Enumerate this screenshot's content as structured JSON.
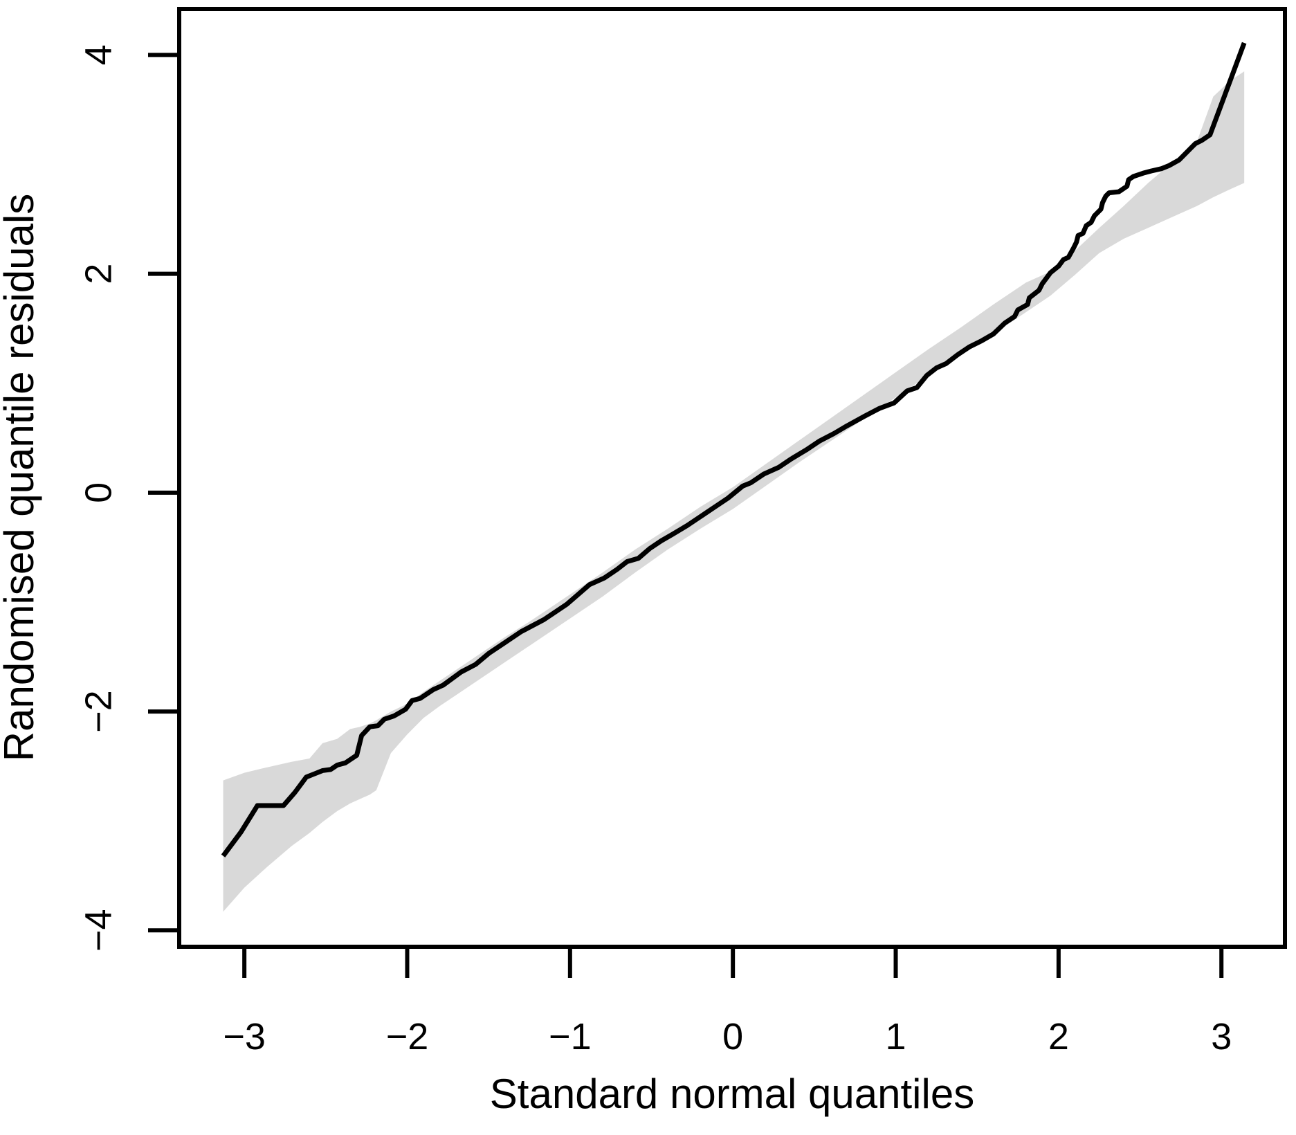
{
  "figure": {
    "background": "#ffffff"
  },
  "chart_data": {
    "type": "line",
    "subtype": "qq-plot-with-confidence-band",
    "title": "",
    "xlabel": "Standard normal quantiles",
    "ylabel": "Randomised quantile residuals",
    "x_ticks": [
      -3,
      -2,
      -1,
      0,
      1,
      2,
      3
    ],
    "y_ticks": [
      -4,
      -2,
      0,
      2,
      4
    ],
    "xlim": [
      -3.4,
      3.39
    ],
    "ylim": [
      -4.15,
      4.42
    ],
    "grid": false,
    "legend": "none",
    "colors": {
      "line": "#000000",
      "band": "#d9d9d9",
      "axis": "#000000",
      "background": "#ffffff"
    },
    "series": [
      {
        "name": "randomised-quantile-residuals",
        "type": "line",
        "points": [
          [
            -3.13,
            -3.32
          ],
          [
            -3.02,
            -3.1
          ],
          [
            -2.92,
            -2.86
          ],
          [
            -2.83,
            -2.86
          ],
          [
            -2.76,
            -2.86
          ],
          [
            -2.69,
            -2.74
          ],
          [
            -2.62,
            -2.6
          ],
          [
            -2.57,
            -2.57
          ],
          [
            -2.52,
            -2.54
          ],
          [
            -2.47,
            -2.53
          ],
          [
            -2.43,
            -2.49
          ],
          [
            -2.38,
            -2.47
          ],
          [
            -2.35,
            -2.44
          ],
          [
            -2.31,
            -2.4
          ],
          [
            -2.29,
            -2.28
          ],
          [
            -2.28,
            -2.22
          ],
          [
            -2.23,
            -2.14
          ],
          [
            -2.18,
            -2.13
          ],
          [
            -2.14,
            -2.07
          ],
          [
            -2.08,
            -2.04
          ],
          [
            -2.01,
            -1.98
          ],
          [
            -1.97,
            -1.9
          ],
          [
            -1.92,
            -1.88
          ],
          [
            -1.84,
            -1.8
          ],
          [
            -1.78,
            -1.76
          ],
          [
            -1.67,
            -1.64
          ],
          [
            -1.58,
            -1.57
          ],
          [
            -1.5,
            -1.47
          ],
          [
            -1.41,
            -1.38
          ],
          [
            -1.3,
            -1.27
          ],
          [
            -1.16,
            -1.16
          ],
          [
            -1.02,
            -1.02
          ],
          [
            -0.88,
            -0.84
          ],
          [
            -0.79,
            -0.78
          ],
          [
            -0.71,
            -0.7
          ],
          [
            -0.65,
            -0.63
          ],
          [
            -0.58,
            -0.6
          ],
          [
            -0.51,
            -0.51
          ],
          [
            -0.44,
            -0.44
          ],
          [
            -0.37,
            -0.38
          ],
          [
            -0.28,
            -0.3
          ],
          [
            -0.2,
            -0.22
          ],
          [
            -0.11,
            -0.13
          ],
          [
            -0.03,
            -0.05
          ],
          [
            0.06,
            0.06
          ],
          [
            0.11,
            0.09
          ],
          [
            0.19,
            0.17
          ],
          [
            0.28,
            0.23
          ],
          [
            0.36,
            0.31
          ],
          [
            0.45,
            0.39
          ],
          [
            0.53,
            0.47
          ],
          [
            0.62,
            0.54
          ],
          [
            0.7,
            0.61
          ],
          [
            0.81,
            0.7
          ],
          [
            0.9,
            0.77
          ],
          [
            0.99,
            0.82
          ],
          [
            1.07,
            0.93
          ],
          [
            1.13,
            0.96
          ],
          [
            1.19,
            1.07
          ],
          [
            1.25,
            1.14
          ],
          [
            1.31,
            1.18
          ],
          [
            1.38,
            1.26
          ],
          [
            1.45,
            1.33
          ],
          [
            1.53,
            1.39
          ],
          [
            1.6,
            1.45
          ],
          [
            1.67,
            1.55
          ],
          [
            1.73,
            1.61
          ],
          [
            1.75,
            1.67
          ],
          [
            1.81,
            1.72
          ],
          [
            1.82,
            1.78
          ],
          [
            1.88,
            1.85
          ],
          [
            1.9,
            1.91
          ],
          [
            1.93,
            1.97
          ],
          [
            1.95,
            2.01
          ],
          [
            2.0,
            2.07
          ],
          [
            2.03,
            2.13
          ],
          [
            2.06,
            2.15
          ],
          [
            2.09,
            2.23
          ],
          [
            2.11,
            2.29
          ],
          [
            2.12,
            2.35
          ],
          [
            2.15,
            2.37
          ],
          [
            2.17,
            2.44
          ],
          [
            2.2,
            2.47
          ],
          [
            2.22,
            2.53
          ],
          [
            2.24,
            2.56
          ],
          [
            2.26,
            2.59
          ],
          [
            2.27,
            2.65
          ],
          [
            2.29,
            2.71
          ],
          [
            2.31,
            2.74
          ],
          [
            2.37,
            2.75
          ],
          [
            2.42,
            2.8
          ],
          [
            2.43,
            2.86
          ],
          [
            2.46,
            2.89
          ],
          [
            2.52,
            2.92
          ],
          [
            2.57,
            2.94
          ],
          [
            2.63,
            2.96
          ],
          [
            2.68,
            2.99
          ],
          [
            2.74,
            3.04
          ],
          [
            2.78,
            3.1
          ],
          [
            2.82,
            3.16
          ],
          [
            2.84,
            3.19
          ],
          [
            2.88,
            3.22
          ],
          [
            2.92,
            3.26
          ],
          [
            2.93,
            3.27
          ],
          [
            3.14,
            4.11
          ]
        ]
      },
      {
        "name": "confidence-band",
        "type": "band",
        "x": [
          -3.13,
          -3.0,
          -2.86,
          -2.71,
          -2.6,
          -2.52,
          -2.43,
          -2.35,
          -2.29,
          -2.23,
          -2.19,
          -2.1,
          -2.0,
          -1.9,
          -1.8,
          -1.7,
          -1.55,
          -1.4,
          -1.25,
          -1.1,
          -0.95,
          -0.8,
          -0.6,
          -0.4,
          -0.2,
          0.0,
          0.2,
          0.4,
          0.6,
          0.8,
          1.0,
          1.2,
          1.4,
          1.6,
          1.8,
          1.95,
          2.1,
          2.25,
          2.4,
          2.55,
          2.7,
          2.85,
          2.95,
          3.05,
          3.14
        ],
        "upper": [
          -2.63,
          -2.56,
          -2.51,
          -2.46,
          -2.43,
          -2.29,
          -2.25,
          -2.16,
          -2.14,
          -2.11,
          -2.08,
          -2.0,
          -1.93,
          -1.82,
          -1.72,
          -1.62,
          -1.47,
          -1.32,
          -1.18,
          -1.03,
          -0.88,
          -0.73,
          -0.52,
          -0.33,
          -0.13,
          0.05,
          0.26,
          0.47,
          0.68,
          0.89,
          1.1,
          1.31,
          1.51,
          1.72,
          1.92,
          2.02,
          2.21,
          2.42,
          2.62,
          2.83,
          3.02,
          3.21,
          3.62,
          3.76,
          3.85
        ],
        "lower": [
          -3.83,
          -3.61,
          -3.42,
          -3.23,
          -3.11,
          -3.01,
          -2.91,
          -2.84,
          -2.8,
          -2.76,
          -2.72,
          -2.38,
          -2.21,
          -2.06,
          -1.95,
          -1.85,
          -1.7,
          -1.55,
          -1.4,
          -1.25,
          -1.1,
          -0.95,
          -0.73,
          -0.52,
          -0.33,
          -0.15,
          0.06,
          0.27,
          0.47,
          0.67,
          0.87,
          1.07,
          1.26,
          1.45,
          1.65,
          1.8,
          1.99,
          2.19,
          2.32,
          2.42,
          2.52,
          2.62,
          2.7,
          2.77,
          2.83
        ]
      }
    ]
  }
}
